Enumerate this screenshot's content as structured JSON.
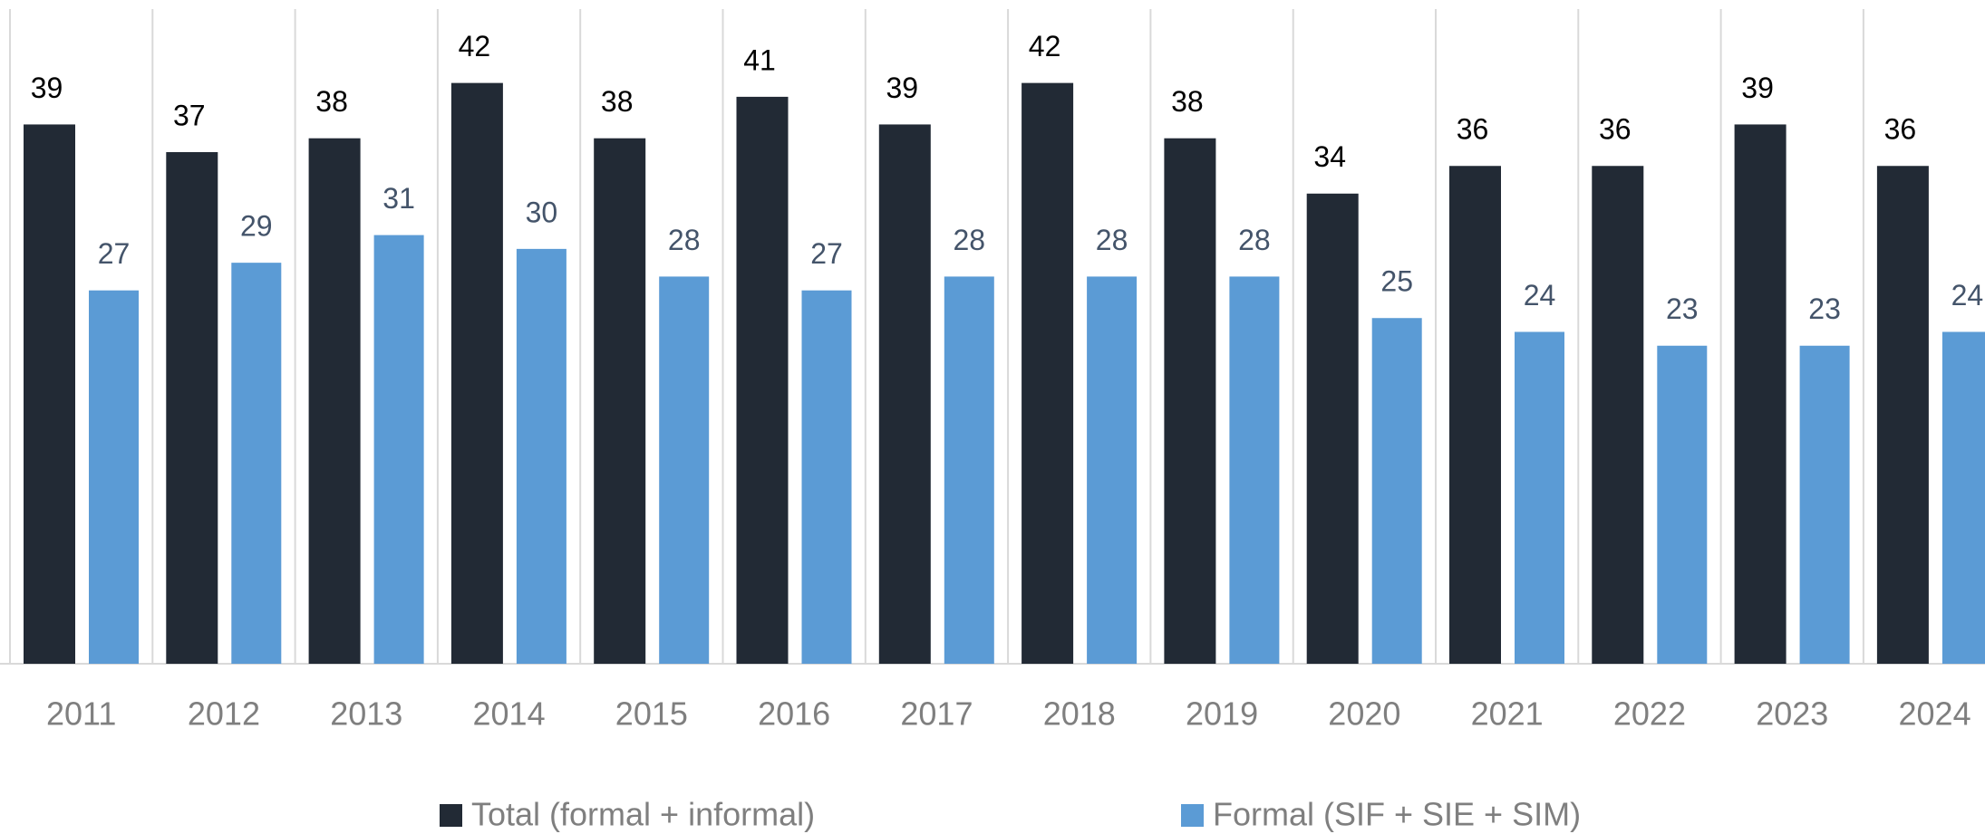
{
  "chart_data": {
    "type": "bar",
    "categories": [
      "2011",
      "2012",
      "2013",
      "2014",
      "2015",
      "2016",
      "2017",
      "2018",
      "2019",
      "2020",
      "2021",
      "2022",
      "2023",
      "2024"
    ],
    "series": [
      {
        "name": "Total (formal + informal)",
        "color": "#222a35",
        "values": [
          39,
          37,
          38,
          42,
          38,
          41,
          39,
          42,
          38,
          34,
          36,
          36,
          39,
          36
        ]
      },
      {
        "name": "Formal (SIF + SIE + SIM)",
        "color": "#5b9bd5",
        "values": [
          27,
          29,
          31,
          30,
          28,
          27,
          28,
          28,
          28,
          25,
          24,
          23,
          23,
          24
        ]
      }
    ],
    "ylim": [
      0,
      48
    ],
    "legend": "bottom"
  }
}
